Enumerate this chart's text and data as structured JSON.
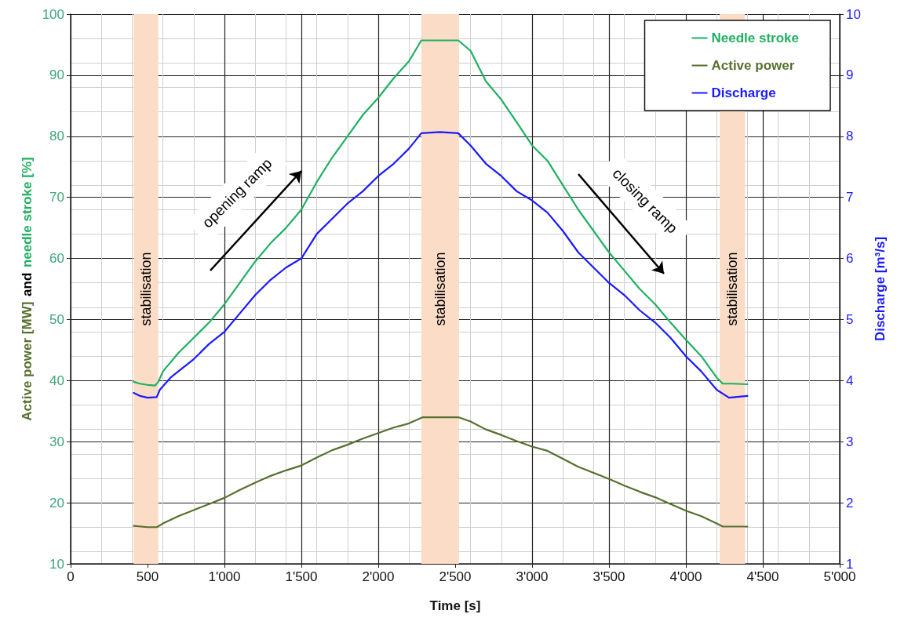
{
  "chart_data": {
    "type": "line",
    "xlabel": "Time [s]",
    "ylabel": "Active power [MW]  and  needle stroke [%]",
    "y2label": "Discharge [m³/s]",
    "xlim": [
      0,
      5000
    ],
    "xticks": [
      0,
      500,
      {
        "value": 1000,
        "label": "1'000"
      },
      {
        "value": 1500,
        "label": "1'500"
      },
      {
        "value": 2000,
        "label": "2'000"
      },
      {
        "value": 2500,
        "label": "2'500"
      },
      {
        "value": 3000,
        "label": "3'000"
      },
      {
        "value": 3500,
        "label": "3'500"
      },
      {
        "value": 4000,
        "label": "4'000"
      },
      {
        "value": 4500,
        "label": "4'500"
      },
      {
        "value": 5000,
        "label": "5'000"
      }
    ],
    "ylim": [
      10,
      100
    ],
    "yticks": [
      10,
      20,
      30,
      40,
      50,
      60,
      70,
      80,
      90,
      100
    ],
    "y2lim": [
      1,
      10
    ],
    "y2ticks": [
      1,
      2,
      3,
      4,
      5,
      6,
      7,
      8,
      9,
      10
    ],
    "grid": true,
    "legend": "top right",
    "marker": "none",
    "line_style": "solid",
    "series": [
      {
        "name": "Needle stroke",
        "color": "#1fb060",
        "x": [
          410,
          450,
          500,
          550,
          570,
          600,
          700,
          800,
          900,
          1000,
          1100,
          1200,
          1300,
          1400,
          1500,
          1600,
          1700,
          1800,
          1900,
          2000,
          2100,
          2200,
          2280,
          2400,
          2520,
          2600,
          2700,
          2800,
          2900,
          3000,
          3100,
          3200,
          3300,
          3400,
          3500,
          3600,
          3700,
          3800,
          3900,
          4000,
          4100,
          4200,
          4240,
          4300,
          4400
        ],
        "values": [
          39.8,
          39.5,
          39.3,
          39.2,
          39.8,
          41.5,
          44.5,
          47,
          49.5,
          52.5,
          56,
          59.5,
          62.5,
          65,
          68,
          72.5,
          76.5,
          80,
          83.5,
          86.3,
          89.5,
          92.3,
          95.7,
          95.7,
          95.7,
          94,
          89,
          86,
          82.3,
          78.5,
          76,
          72,
          68,
          64.5,
          61,
          58,
          55,
          52.5,
          49.5,
          46.7,
          44,
          40.5,
          39.5,
          39.5,
          39.4
        ]
      },
      {
        "name": "Active power",
        "color": "#56702e",
        "x": [
          410,
          500,
          560,
          600,
          700,
          800,
          900,
          1000,
          1100,
          1200,
          1300,
          1400,
          1500,
          1600,
          1700,
          1800,
          1900,
          2000,
          2100,
          2200,
          2290,
          2400,
          2520,
          2600,
          2700,
          2800,
          2900,
          3000,
          3100,
          3200,
          3300,
          3400,
          3500,
          3600,
          3700,
          3800,
          3900,
          4000,
          4100,
          4200,
          4240,
          4400
        ],
        "values": [
          16.2,
          16.0,
          16.0,
          16.6,
          17.8,
          18.8,
          19.8,
          20.8,
          22.1,
          23.3,
          24.4,
          25.3,
          26.1,
          27.4,
          28.6,
          29.5,
          30.5,
          31.4,
          32.3,
          33.0,
          34.0,
          34.0,
          34.0,
          33.3,
          32.0,
          31.1,
          30.1,
          29.2,
          28.5,
          27.2,
          25.9,
          24.9,
          23.9,
          22.8,
          21.8,
          20.9,
          19.8,
          18.7,
          17.8,
          16.6,
          16.1,
          16.1
        ]
      },
      {
        "name": "Discharge",
        "color": "#1a1aff",
        "axis": "y2",
        "x": [
          410,
          450,
          500,
          560,
          580,
          650,
          700,
          800,
          900,
          1000,
          1100,
          1200,
          1300,
          1400,
          1500,
          1600,
          1700,
          1800,
          1900,
          2000,
          2100,
          2200,
          2280,
          2400,
          2520,
          2600,
          2700,
          2800,
          2900,
          3000,
          3100,
          3200,
          3300,
          3400,
          3500,
          3600,
          3700,
          3800,
          3900,
          4000,
          4100,
          4200,
          4280,
          4400
        ],
        "values": [
          3.8,
          3.75,
          3.72,
          3.73,
          3.85,
          4.05,
          4.15,
          4.35,
          4.6,
          4.8,
          5.1,
          5.4,
          5.65,
          5.85,
          6.0,
          6.4,
          6.65,
          6.9,
          7.1,
          7.35,
          7.55,
          7.8,
          8.05,
          8.07,
          8.05,
          7.85,
          7.55,
          7.35,
          7.1,
          6.95,
          6.75,
          6.45,
          6.1,
          5.85,
          5.6,
          5.4,
          5.15,
          4.95,
          4.7,
          4.4,
          4.15,
          3.85,
          3.72,
          3.75
        ]
      }
    ],
    "bands": [
      {
        "axis": "x",
        "from": 410,
        "to": 570,
        "label": "stabilisation",
        "color": "#fbdcc6"
      },
      {
        "axis": "x",
        "from": 2280,
        "to": 2525,
        "label": "stabilisation",
        "color": "#fbdcc6"
      },
      {
        "axis": "x",
        "from": 4220,
        "to": 4385,
        "label": "stabilisation",
        "color": "#fbdcc6"
      }
    ],
    "annotations": [
      "opening ramp",
      "closing ramp"
    ]
  }
}
